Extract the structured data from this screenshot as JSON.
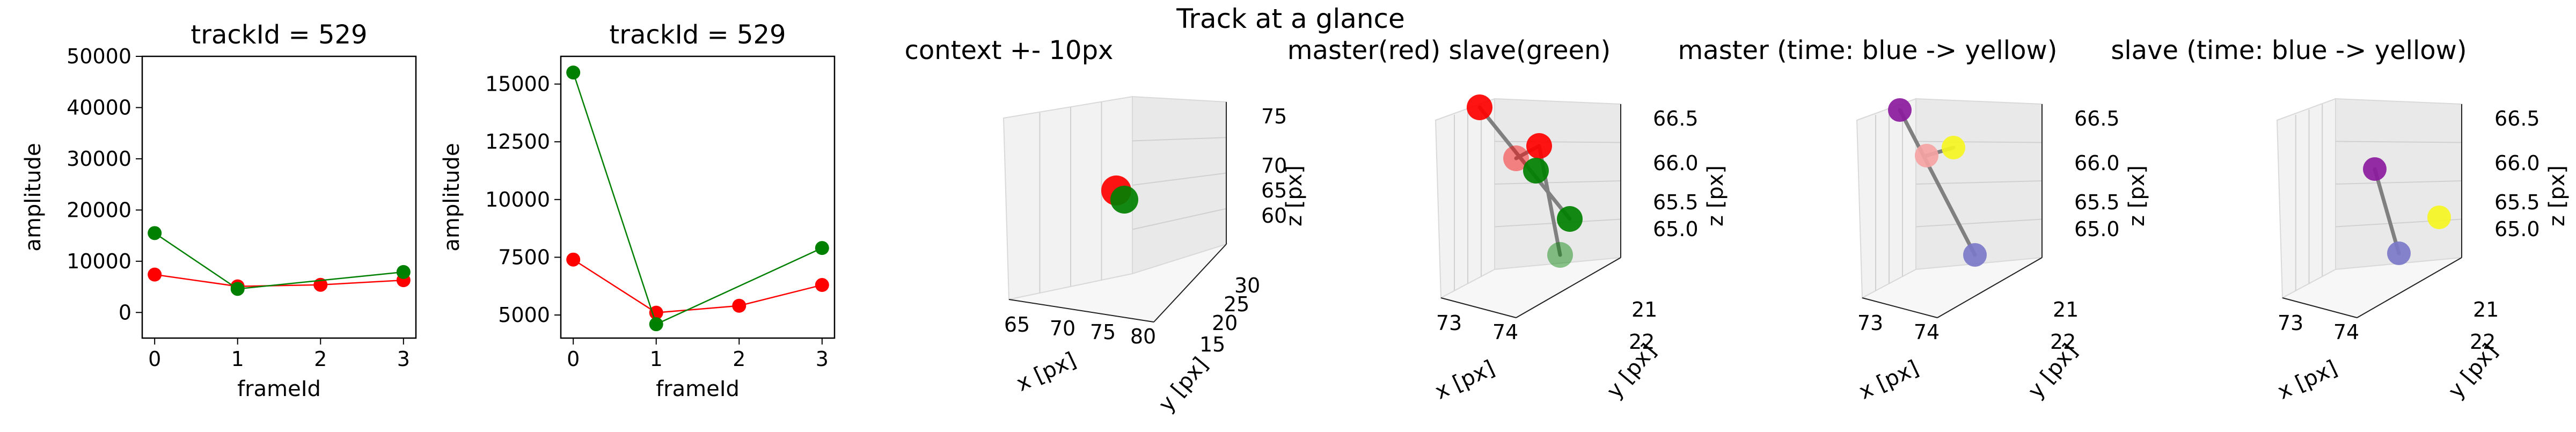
{
  "figure_title": "Track at a glance",
  "chart_data": [
    {
      "type": "line",
      "title": "trackId = 529",
      "xlabel": "frameId",
      "ylabel": "amplitude",
      "xlim": [
        -0.15,
        3.15
      ],
      "ylim": [
        -5000,
        50000
      ],
      "xticks": [
        "0",
        "1",
        "2",
        "3"
      ],
      "yticks": [
        "0",
        "10000",
        "20000",
        "30000",
        "40000",
        "50000"
      ],
      "series": [
        {
          "color": "#ff0000",
          "x": [
            0,
            1,
            2,
            3
          ],
          "values": [
            7400,
            5100,
            5400,
            6300
          ]
        },
        {
          "color": "#008000",
          "x": [
            0,
            1,
            3
          ],
          "values": [
            15500,
            4600,
            7900
          ]
        }
      ]
    },
    {
      "type": "line",
      "title": "trackId = 529",
      "xlabel": "frameId",
      "ylabel": "amplitude",
      "xlim": [
        -0.15,
        3.15
      ],
      "ylim": [
        4000,
        16200
      ],
      "xticks": [
        "0",
        "1",
        "2",
        "3"
      ],
      "yticks": [
        "5000",
        "7500",
        "10000",
        "12500",
        "15000"
      ],
      "series": [
        {
          "color": "#ff0000",
          "x": [
            0,
            1,
            2,
            3
          ],
          "values": [
            7400,
            5100,
            5400,
            6300
          ]
        },
        {
          "color": "#008000",
          "x": [
            0,
            1,
            3
          ],
          "values": [
            15500,
            4600,
            7900
          ]
        }
      ]
    },
    {
      "type": "scatter",
      "title": "context +- 10px",
      "xlabel": "x [px]",
      "ylabel": "y [px]",
      "zlabel": "z [px]",
      "xticks": [
        "65",
        "70",
        "75",
        "80"
      ],
      "yticks": [
        "15",
        "20",
        "25",
        "30"
      ],
      "zticks": [
        "60",
        "65",
        "70",
        "75"
      ],
      "points": [
        {
          "color": "#ff0000",
          "label": "master"
        },
        {
          "color": "#008000",
          "label": "slave"
        }
      ]
    },
    {
      "type": "scatter",
      "title": "master(red) slave(green)",
      "xlabel": "x [px]",
      "ylabel": "y [px]",
      "zlabel": "z [px]",
      "xticks": [
        "73",
        "74"
      ],
      "yticks": [
        "21",
        "22"
      ],
      "zticks": [
        "65.0",
        "65.5",
        "66.0",
        "66.5"
      ],
      "points": [
        {
          "color": "#ff0000"
        },
        {
          "color": "#ff0000"
        },
        {
          "color": "#ff0000"
        },
        {
          "color": "#008000"
        },
        {
          "color": "#008000"
        },
        {
          "color": "#008000"
        }
      ]
    },
    {
      "type": "scatter",
      "title": "master (time: blue -> yellow)",
      "xlabel": "x [px]",
      "ylabel": "y [px]",
      "zlabel": "z [px]",
      "xticks": [
        "73",
        "74"
      ],
      "yticks": [
        "21",
        "22"
      ],
      "zticks": [
        "65.0",
        "65.5",
        "66.0",
        "66.5"
      ],
      "points": [
        {
          "color": "#8b1a9e"
        },
        {
          "color": "#f5a3a3"
        },
        {
          "color": "#f5f522"
        },
        {
          "color": "#7b78c8"
        }
      ]
    },
    {
      "type": "scatter",
      "title": "slave (time: blue -> yellow)",
      "xlabel": "x [px]",
      "ylabel": "y [px]",
      "zlabel": "z [px]",
      "xticks": [
        "73",
        "74"
      ],
      "yticks": [
        "21",
        "22"
      ],
      "zticks": [
        "65.0",
        "65.5",
        "66.0",
        "66.5"
      ],
      "points": [
        {
          "color": "#8b1a9e"
        },
        {
          "color": "#f5f522"
        },
        {
          "color": "#7b78c8"
        }
      ]
    }
  ]
}
